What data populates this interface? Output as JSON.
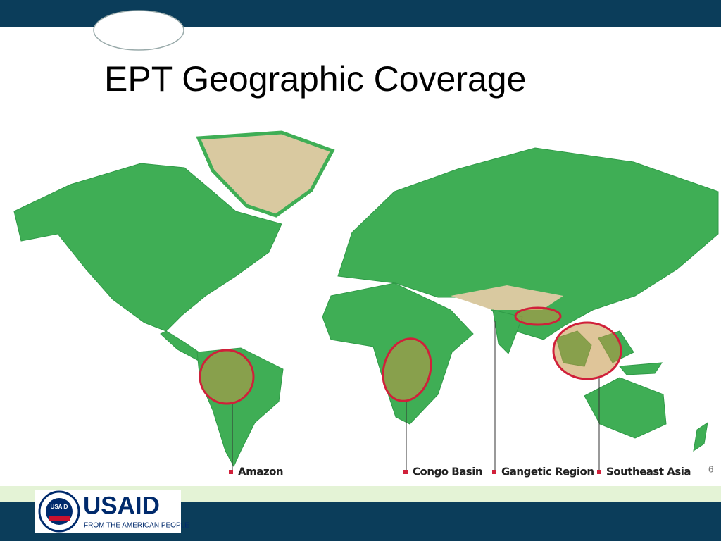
{
  "slide": {
    "title": "EPT Geographic Coverage",
    "page_number": "6"
  },
  "map": {
    "regions": [
      {
        "label": "Amazon"
      },
      {
        "label": "Congo Basin"
      },
      {
        "label": "Gangetic Region"
      },
      {
        "label": "Southeast Asia"
      }
    ]
  },
  "logo": {
    "seal": "USAID",
    "name": "USAID",
    "tagline": "FROM THE AMERICAN PEOPLE"
  }
}
